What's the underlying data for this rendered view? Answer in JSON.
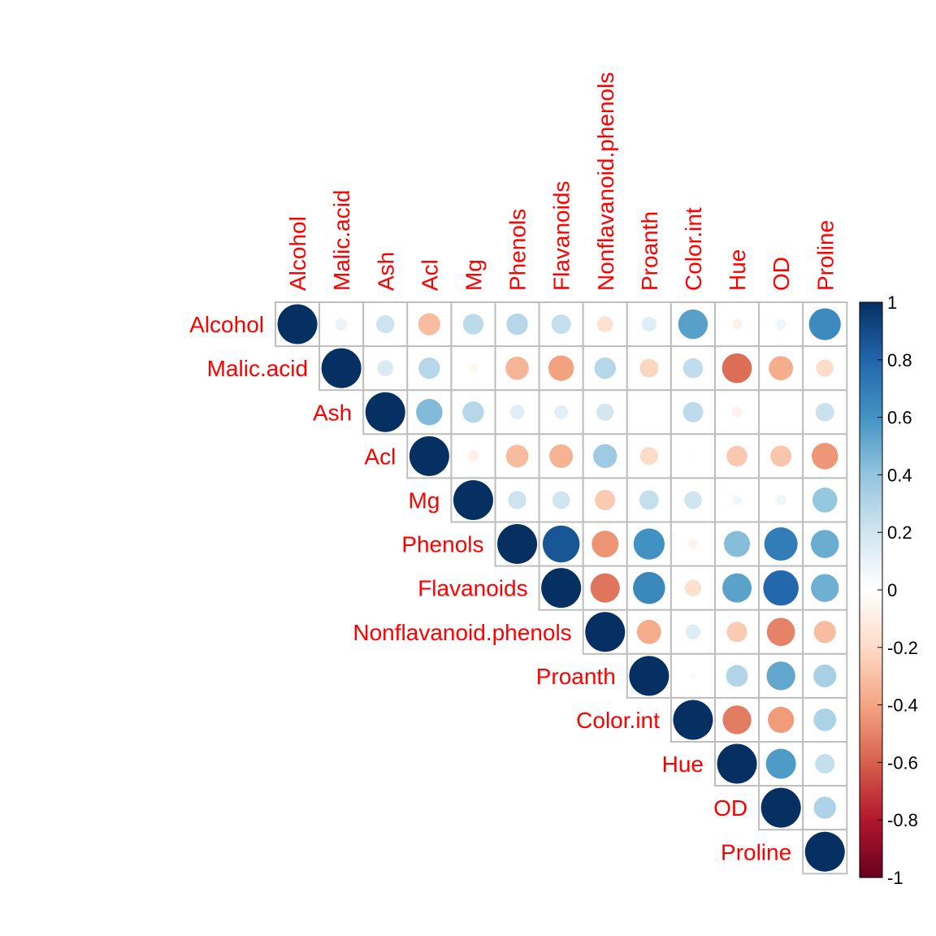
{
  "chart_data": {
    "type": "heatmap",
    "subtype": "correlation-upper-triangle-circles",
    "variables": [
      "Alcohol",
      "Malic.acid",
      "Ash",
      "Acl",
      "Mg",
      "Phenols",
      "Flavanoids",
      "Nonflavanoid.phenols",
      "Proanth",
      "Color.int",
      "Hue",
      "OD",
      "Proline"
    ],
    "matrix": [
      [
        1.0,
        0.09,
        0.21,
        -0.31,
        0.27,
        0.29,
        0.24,
        -0.16,
        0.14,
        0.55,
        -0.07,
        0.07,
        0.64
      ],
      [
        0.09,
        1.0,
        0.16,
        0.29,
        -0.05,
        -0.34,
        -0.41,
        0.29,
        -0.22,
        0.25,
        -0.56,
        -0.37,
        -0.19
      ],
      [
        0.21,
        0.16,
        1.0,
        0.44,
        0.29,
        0.13,
        0.12,
        0.19,
        0.01,
        0.26,
        -0.07,
        0.0,
        0.22
      ],
      [
        -0.31,
        0.29,
        0.44,
        1.0,
        -0.08,
        -0.32,
        -0.35,
        0.36,
        -0.2,
        0.02,
        -0.27,
        -0.28,
        -0.44
      ],
      [
        0.27,
        -0.05,
        0.29,
        -0.08,
        1.0,
        0.21,
        0.2,
        -0.26,
        0.24,
        0.2,
        0.06,
        0.07,
        0.39
      ],
      [
        0.29,
        -0.34,
        0.13,
        -0.32,
        0.21,
        1.0,
        0.86,
        -0.45,
        0.61,
        -0.06,
        0.43,
        0.7,
        0.5
      ],
      [
        0.24,
        -0.41,
        0.12,
        -0.35,
        0.2,
        0.86,
        1.0,
        -0.54,
        0.65,
        -0.17,
        0.54,
        0.79,
        0.49
      ],
      [
        -0.16,
        0.29,
        0.19,
        0.36,
        -0.26,
        -0.45,
        -0.54,
        1.0,
        -0.37,
        0.14,
        -0.26,
        -0.5,
        -0.31
      ],
      [
        0.14,
        -0.22,
        0.01,
        -0.2,
        0.24,
        0.61,
        0.65,
        -0.37,
        1.0,
        -0.03,
        0.3,
        0.52,
        0.33
      ],
      [
        0.55,
        0.25,
        0.26,
        0.02,
        0.2,
        -0.06,
        -0.17,
        0.14,
        -0.03,
        1.0,
        -0.52,
        -0.43,
        0.32
      ],
      [
        -0.07,
        -0.56,
        -0.07,
        -0.27,
        0.06,
        0.43,
        0.54,
        -0.26,
        0.3,
        -0.52,
        1.0,
        0.57,
        0.24
      ],
      [
        0.07,
        -0.37,
        0.0,
        -0.28,
        0.07,
        0.7,
        0.79,
        -0.5,
        0.52,
        -0.43,
        0.57,
        1.0,
        0.31
      ],
      [
        0.64,
        -0.19,
        0.22,
        -0.44,
        0.39,
        0.5,
        0.49,
        -0.31,
        0.33,
        0.32,
        0.24,
        0.31,
        1.0
      ]
    ],
    "color_scale": {
      "min": -1,
      "max": 1,
      "stops": [
        "#67001f",
        "#b2182b",
        "#d6604d",
        "#f4a582",
        "#fddbc7",
        "#ffffff",
        "#d1e5f0",
        "#92c5de",
        "#4393c3",
        "#2166ac",
        "#053061"
      ],
      "tick_labels": [
        "1",
        "0.8",
        "0.6",
        "0.4",
        "0.2",
        "0",
        "-0.2",
        "-0.4",
        "-0.6",
        "-0.8",
        "-1"
      ]
    },
    "label_color": "#ff0000",
    "grid_color": "#bebebe",
    "legend_placement": "right"
  }
}
